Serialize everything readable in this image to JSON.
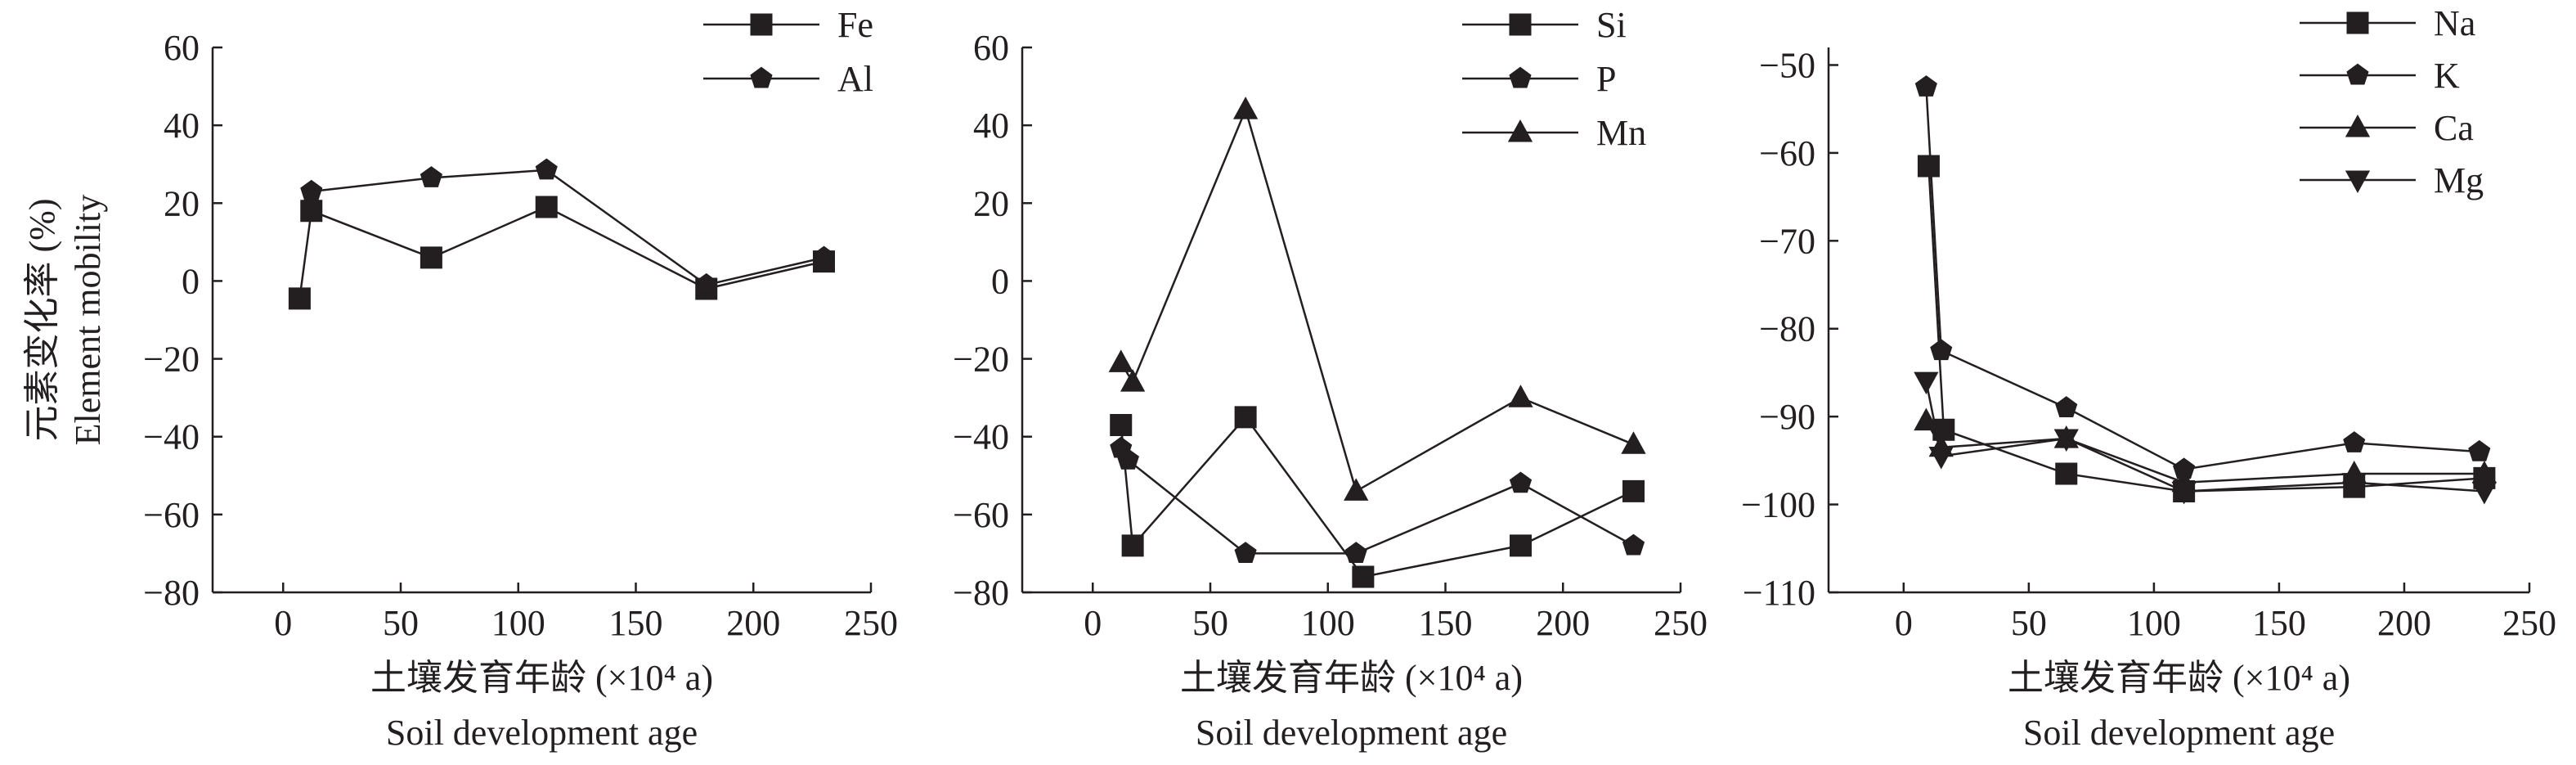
{
  "chart_data": [
    {
      "type": "line",
      "x_ticks": [
        0,
        50,
        100,
        150,
        200,
        250
      ],
      "y_ticks": [
        -80,
        -60,
        -40,
        -20,
        0,
        20,
        40,
        60
      ],
      "xlim": [
        -30,
        250
      ],
      "ylim": [
        -80,
        60
      ],
      "xlabel_cn": "土壤发育年龄 (×10⁴ a)",
      "xlabel_en": "Soil development age",
      "ylabel_cn": "元素变化率 (%)",
      "ylabel_en": "Element mobility",
      "legend_position": "top-right",
      "series": [
        {
          "name": "Fe",
          "marker": "square",
          "x": [
            7,
            12,
            63,
            112,
            180,
            230
          ],
          "y": [
            -4.5,
            18,
            6,
            19,
            -2,
            5
          ]
        },
        {
          "name": "Al",
          "marker": "pentagon",
          "x": [
            12,
            63,
            112,
            180,
            230
          ],
          "y": [
            23,
            26.5,
            28.5,
            -1,
            6
          ]
        }
      ]
    },
    {
      "type": "line",
      "x_ticks": [
        0,
        50,
        100,
        150,
        200,
        250
      ],
      "y_ticks": [
        -80,
        -60,
        -40,
        -20,
        0,
        20,
        40,
        60
      ],
      "xlim": [
        -30,
        250
      ],
      "ylim": [
        -80,
        60
      ],
      "xlabel_cn": "土壤发育年龄 (×10⁴ a)",
      "xlabel_en": "Soil development age",
      "legend_position": "top-right",
      "series": [
        {
          "name": "Si",
          "marker": "square",
          "x": [
            12,
            17,
            65,
            115,
            182,
            230
          ],
          "y": [
            -37,
            -68,
            -35,
            -76,
            -68,
            -54
          ]
        },
        {
          "name": "P",
          "marker": "pentagon",
          "x": [
            12,
            15,
            65,
            112,
            182,
            230
          ],
          "y": [
            -43,
            -46,
            -70,
            -70,
            -52,
            -68
          ]
        },
        {
          "name": "Mn",
          "marker": "triangle-up",
          "x": [
            12,
            17,
            65,
            112,
            182,
            230
          ],
          "y": [
            -21,
            -26,
            44,
            -54,
            -30,
            -42
          ]
        }
      ]
    },
    {
      "type": "line",
      "x_ticks": [
        0,
        50,
        100,
        150,
        200,
        250
      ],
      "y_ticks": [
        -110,
        -100,
        -90,
        -80,
        -70,
        -60,
        -50
      ],
      "xlim": [
        -30,
        250
      ],
      "ylim": [
        -110,
        -48
      ],
      "xlabel_cn": "土壤发育年龄 (×10⁴ a)",
      "xlabel_en": "Soil development age",
      "legend_position": "top-right",
      "series": [
        {
          "name": "Na",
          "marker": "square",
          "x": [
            10,
            16,
            65,
            112,
            180,
            232
          ],
          "y": [
            -61.5,
            -91.5,
            -96.5,
            -98.5,
            -98,
            -97
          ]
        },
        {
          "name": "K",
          "marker": "pentagon",
          "x": [
            9,
            15,
            65,
            112,
            180,
            230
          ],
          "y": [
            -52.5,
            -82.5,
            -89,
            -96,
            -93,
            -94
          ]
        },
        {
          "name": "Ca",
          "marker": "triangle-up",
          "x": [
            9,
            15,
            65,
            112,
            180,
            232
          ],
          "y": [
            -90.5,
            -93.5,
            -92.5,
            -97.5,
            -96.5,
            -96.5
          ]
        },
        {
          "name": "Mg",
          "marker": "triangle-down",
          "x": [
            9,
            15,
            65,
            112,
            180,
            232
          ],
          "y": [
            -86,
            -94.5,
            -92.5,
            -98.5,
            -97.5,
            -98.5
          ]
        }
      ]
    }
  ]
}
